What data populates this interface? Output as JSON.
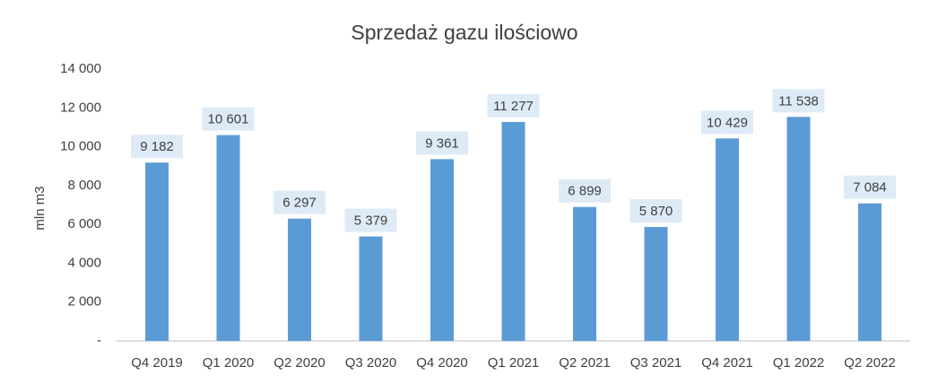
{
  "chart_data": {
    "type": "bar",
    "title": "Sprzedaż gazu ilościowo",
    "y_label": "mln m3",
    "categories": [
      "Q4 2019",
      "Q1 2020",
      "Q2 2020",
      "Q3 2020",
      "Q4 2020",
      "Q1 2021",
      "Q2 2021",
      "Q3 2021",
      "Q4 2021",
      "Q1 2022",
      "Q2 2022"
    ],
    "values": [
      9182,
      10601,
      6297,
      5379,
      9361,
      11277,
      6899,
      5870,
      10429,
      11538,
      7084
    ],
    "value_labels": [
      "9 182",
      "10 601",
      "6 297",
      "5 379",
      "9 361",
      "11 277",
      "6 899",
      "5 870",
      "10 429",
      "11 538",
      "7 084"
    ],
    "color": "#5b9bd5",
    "label_box_color": "#deebf7",
    "ylim": [
      0,
      14000
    ],
    "yticks": [
      {
        "value": 0,
        "label": "-"
      },
      {
        "value": 2000,
        "label": "2 000"
      },
      {
        "value": 4000,
        "label": "4 000"
      },
      {
        "value": 6000,
        "label": "6 000"
      },
      {
        "value": 8000,
        "label": "8 000"
      },
      {
        "value": 10000,
        "label": "10 000"
      },
      {
        "value": 12000,
        "label": "12 000"
      },
      {
        "value": 14000,
        "label": "14 000"
      }
    ],
    "grid": false
  }
}
